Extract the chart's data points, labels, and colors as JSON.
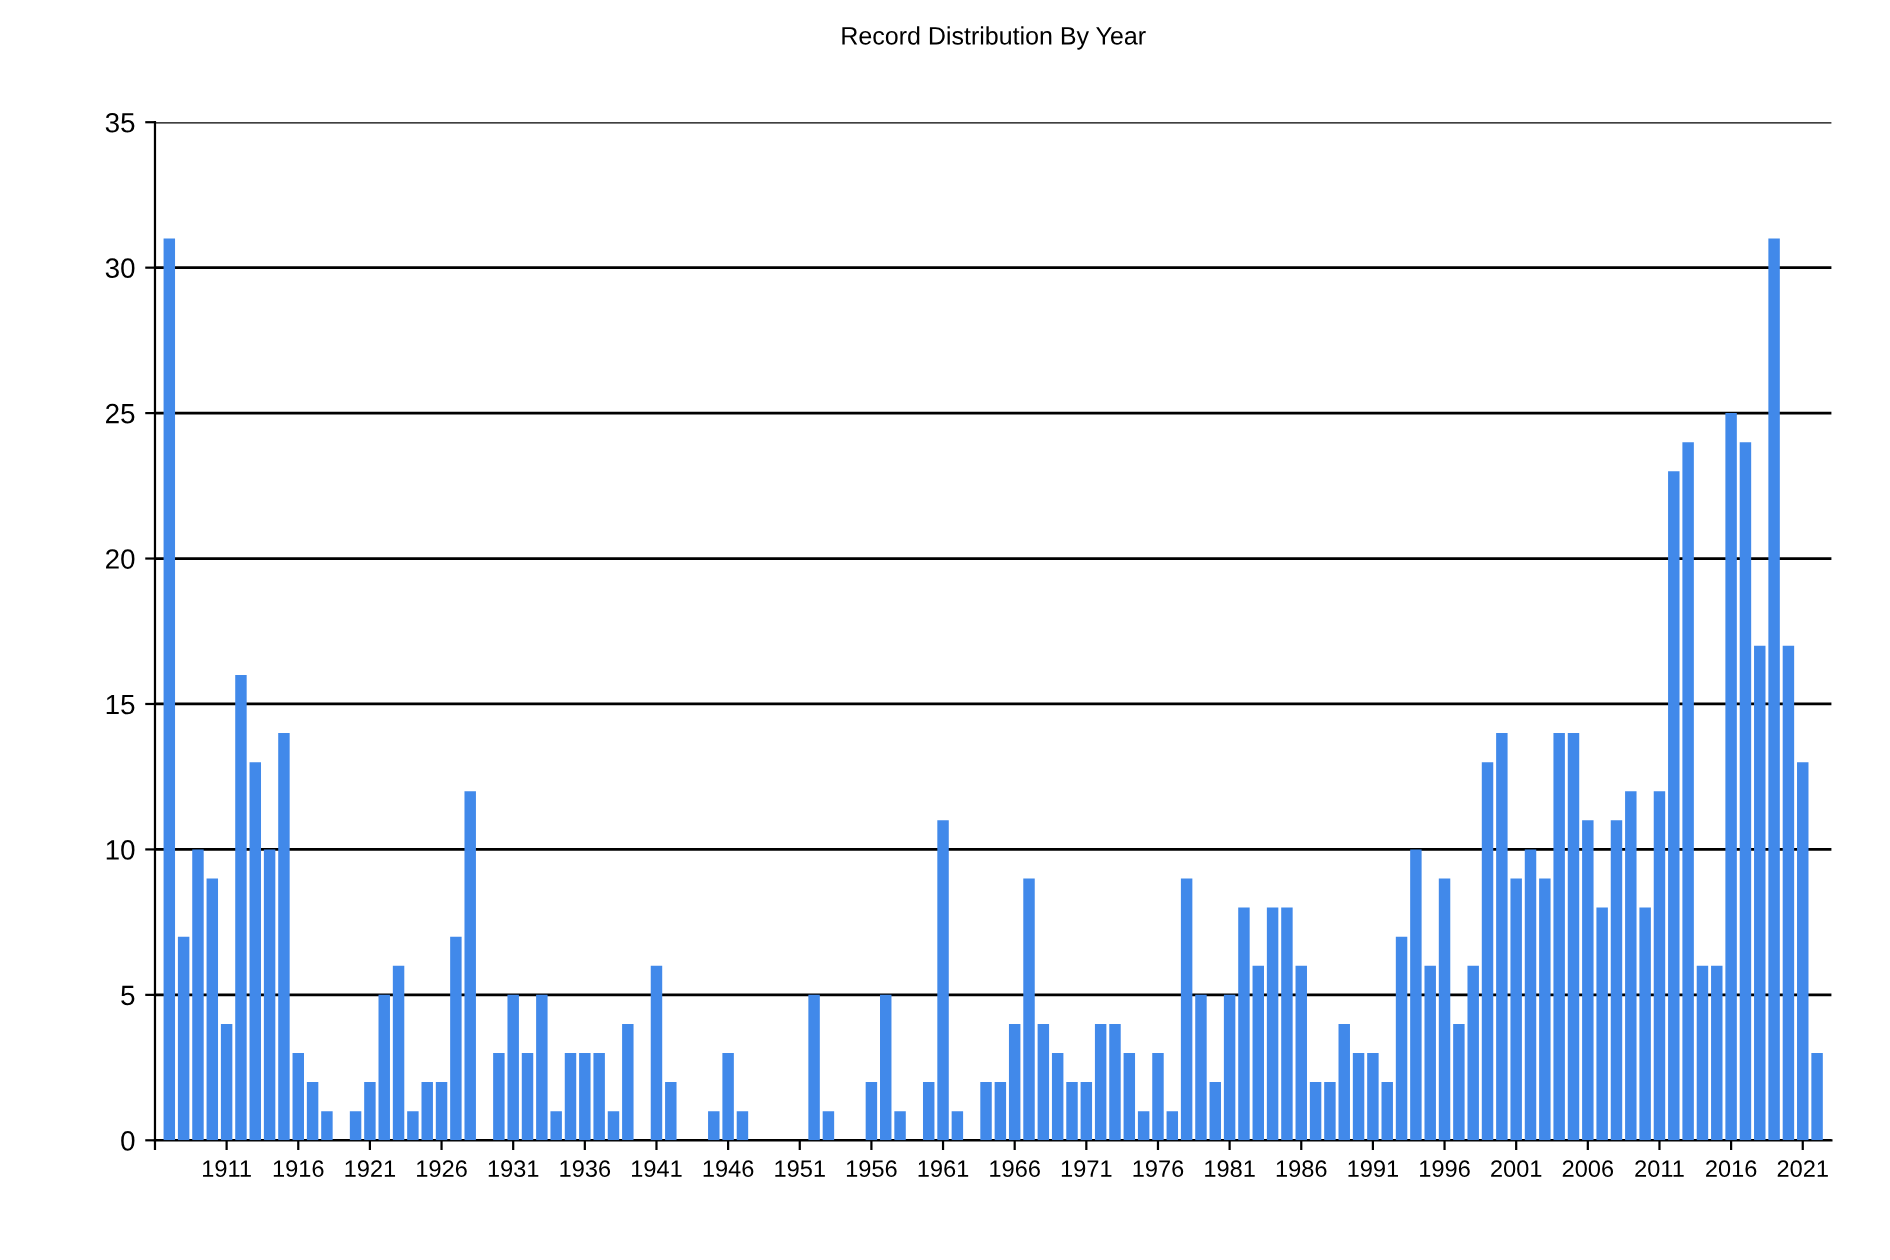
{
  "chart_data": {
    "type": "bar",
    "title": "Record Distribution By Year",
    "x": [
      1907,
      1908,
      1909,
      1910,
      1911,
      1912,
      1913,
      1914,
      1915,
      1916,
      1917,
      1918,
      1919,
      1920,
      1921,
      1922,
      1923,
      1924,
      1925,
      1926,
      1927,
      1928,
      1929,
      1930,
      1931,
      1932,
      1933,
      1934,
      1935,
      1936,
      1937,
      1938,
      1939,
      1940,
      1941,
      1942,
      1943,
      1944,
      1945,
      1946,
      1947,
      1948,
      1949,
      1950,
      1951,
      1952,
      1953,
      1954,
      1955,
      1956,
      1957,
      1958,
      1959,
      1960,
      1961,
      1962,
      1963,
      1964,
      1965,
      1966,
      1967,
      1968,
      1969,
      1970,
      1971,
      1972,
      1973,
      1974,
      1975,
      1976,
      1977,
      1978,
      1979,
      1980,
      1981,
      1982,
      1983,
      1984,
      1985,
      1986,
      1987,
      1988,
      1989,
      1990,
      1991,
      1992,
      1993,
      1994,
      1995,
      1996,
      1997,
      1998,
      1999,
      2000,
      2001,
      2002,
      2003,
      2004,
      2005,
      2006,
      2007,
      2008,
      2009,
      2010,
      2011,
      2012,
      2013,
      2014,
      2015,
      2016,
      2017,
      2018,
      2019,
      2020,
      2021,
      2022
    ],
    "values": [
      31,
      7,
      10,
      9,
      4,
      16,
      13,
      10,
      14,
      3,
      2,
      1,
      0,
      1,
      2,
      5,
      6,
      1,
      2,
      2,
      7,
      12,
      0,
      3,
      5,
      3,
      5,
      1,
      3,
      3,
      3,
      1,
      4,
      0,
      6,
      2,
      0,
      0,
      1,
      3,
      1,
      0,
      0,
      0,
      0,
      5,
      1,
      0,
      0,
      2,
      5,
      1,
      0,
      2,
      11,
      1,
      0,
      2,
      2,
      4,
      9,
      4,
      3,
      2,
      2,
      4,
      4,
      3,
      1,
      3,
      1,
      9,
      5,
      2,
      5,
      8,
      6,
      8,
      8,
      6,
      2,
      2,
      4,
      3,
      3,
      2,
      7,
      10,
      6,
      9,
      4,
      6,
      13,
      14,
      9,
      10,
      9,
      14,
      14,
      11,
      8,
      11,
      12,
      8,
      12,
      23,
      24,
      6,
      6,
      25,
      24,
      17,
      31,
      17,
      13,
      3
    ],
    "color": "#4189ea",
    "xlim": [
      1906,
      2023
    ],
    "xticks": [
      {
        "value": 1906,
        "label": null
      },
      1911,
      1916,
      1921,
      1926,
      1931,
      1936,
      1941,
      1946,
      1951,
      1956,
      1961,
      1966,
      1971,
      1976,
      1981,
      1986,
      1991,
      1996,
      2001,
      2006,
      2011,
      2016,
      2021
    ],
    "ylim": [
      0,
      35
    ],
    "yticks": [
      0,
      5,
      10,
      15,
      20,
      25,
      30,
      35
    ],
    "grid": "y"
  }
}
